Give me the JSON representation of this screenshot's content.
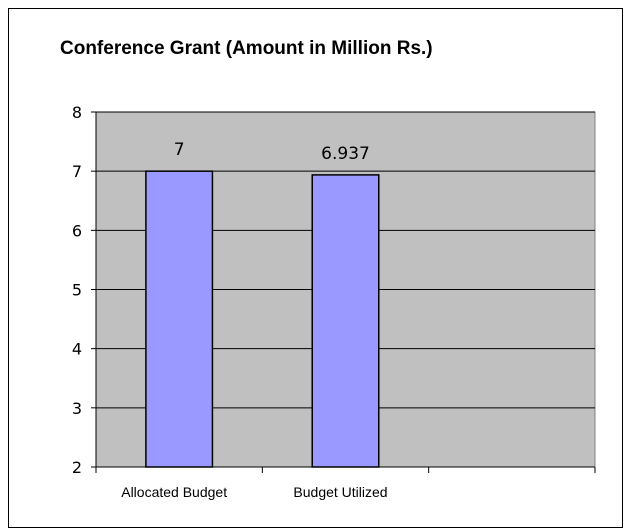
{
  "chart_data": {
    "type": "bar",
    "title": "Conference Grant (Amount in Million Rs.)",
    "categories": [
      "Allocated Budget",
      "Budget Utilized",
      ""
    ],
    "values": [
      7,
      6.937,
      null
    ],
    "data_labels": [
      "7",
      "6.937",
      ""
    ],
    "xlabel": "",
    "ylabel": "",
    "ylim": [
      2,
      8
    ],
    "yticks": [
      2,
      3,
      4,
      5,
      6,
      7,
      8
    ],
    "grid": true,
    "legend": "none",
    "colors": {
      "plot_bg": "#c0c0c0",
      "bar_fill": "#9999ff",
      "bar_stroke": "#000000",
      "grid": "#000000"
    }
  }
}
